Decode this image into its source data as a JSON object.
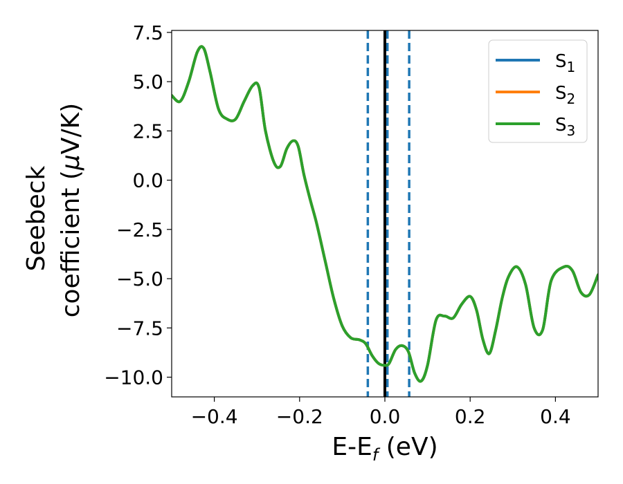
{
  "chart_data": {
    "type": "line",
    "xlabel": {
      "main": "E-E",
      "sub": "f",
      "suffix": " (eV)"
    },
    "ylabel": {
      "line1": "Seebeck",
      "line2_pre": "coefficient  (",
      "mu": "μ",
      "line2_post": "V/K)"
    },
    "xlim": [
      -0.5,
      0.5
    ],
    "ylim": [
      -11.0,
      7.6
    ],
    "xticks": [
      -0.4,
      -0.2,
      0.0,
      0.2,
      0.4
    ],
    "xtick_labels": [
      "−0.4",
      "−0.2",
      "0.0",
      "0.2",
      "0.4"
    ],
    "yticks": [
      7.5,
      5.0,
      2.5,
      0.0,
      -2.5,
      -5.0,
      -7.5,
      -10.0
    ],
    "ytick_labels": [
      "7.5",
      "5.0",
      "2.5",
      "0.0",
      "−2.5",
      "−5.0",
      "−7.5",
      "−10.0"
    ],
    "vertical_lines": [
      {
        "x": 0.0,
        "style": "solid",
        "color": "#000000"
      },
      {
        "x": -0.04,
        "style": "dashed",
        "color": "#1f77b4"
      },
      {
        "x": 0.006,
        "style": "dashed",
        "color": "#1f77b4"
      },
      {
        "x": 0.057,
        "style": "dashed",
        "color": "#1f77b4"
      }
    ],
    "legend_position": "top-right",
    "series": [
      {
        "name": "S",
        "sub": "1",
        "color": "#1f77b4"
      },
      {
        "name": "S",
        "sub": "2",
        "color": "#ff7f0e"
      },
      {
        "name": "S",
        "sub": "3",
        "color": "#2ca02c"
      }
    ],
    "x": [
      -0.5,
      -0.48,
      -0.46,
      -0.44,
      -0.425,
      -0.41,
      -0.39,
      -0.37,
      -0.35,
      -0.33,
      -0.31,
      -0.295,
      -0.28,
      -0.26,
      -0.245,
      -0.23,
      -0.215,
      -0.203,
      -0.19,
      -0.175,
      -0.16,
      -0.14,
      -0.12,
      -0.1,
      -0.08,
      -0.06,
      -0.045,
      -0.03,
      -0.015,
      0.0,
      0.01,
      0.025,
      0.04,
      0.055,
      0.07,
      0.085,
      0.1,
      0.12,
      0.14,
      0.16,
      0.18,
      0.2,
      0.215,
      0.23,
      0.245,
      0.26,
      0.275,
      0.29,
      0.31,
      0.33,
      0.35,
      0.37,
      0.39,
      0.42,
      0.44,
      0.46,
      0.48,
      0.5
    ],
    "y": [
      4.3,
      4.0,
      5.0,
      6.5,
      6.7,
      5.5,
      3.6,
      3.1,
      3.1,
      4.0,
      4.8,
      4.7,
      2.5,
      0.9,
      0.7,
      1.6,
      2.0,
      1.7,
      0.3,
      -1.0,
      -2.2,
      -4.1,
      -6.0,
      -7.4,
      -8.0,
      -8.1,
      -8.3,
      -8.9,
      -9.3,
      -9.4,
      -9.3,
      -8.6,
      -8.4,
      -8.7,
      -9.8,
      -10.2,
      -9.4,
      -7.1,
      -6.9,
      -7.0,
      -6.3,
      -5.9,
      -6.6,
      -8.1,
      -8.8,
      -7.6,
      -6.0,
      -4.9,
      -4.4,
      -5.3,
      -7.5,
      -7.6,
      -5.1,
      -4.4,
      -4.6,
      -5.7,
      -5.8,
      -4.8
    ]
  }
}
